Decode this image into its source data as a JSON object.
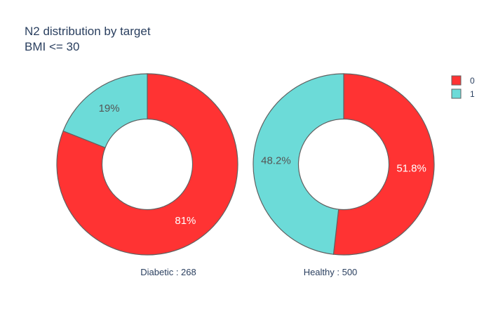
{
  "chart_data": {
    "type": "pie",
    "title_lines": [
      "N2 distribution by target",
      "BMI <= 30"
    ],
    "colors": {
      "0": "#ff3333",
      "1": "#6cdbd8",
      "slice_border": "#606060",
      "text_dark": "#2a3f5f"
    },
    "legend": {
      "placement": "top-right",
      "entries": [
        {
          "label": "0",
          "key": "0"
        },
        {
          "label": "1",
          "key": "1"
        }
      ]
    },
    "charts": [
      {
        "name": "Diabetic : 268",
        "hole": 0.5,
        "slices": [
          {
            "label": "0",
            "percent": 81,
            "text": "81%"
          },
          {
            "label": "1",
            "percent": 19,
            "text": "19%"
          }
        ]
      },
      {
        "name": "Healthy : 500",
        "hole": 0.5,
        "slices": [
          {
            "label": "0",
            "percent": 51.8,
            "text": "51.8%"
          },
          {
            "label": "1",
            "percent": 48.2,
            "text": "48.2%"
          }
        ]
      }
    ]
  }
}
